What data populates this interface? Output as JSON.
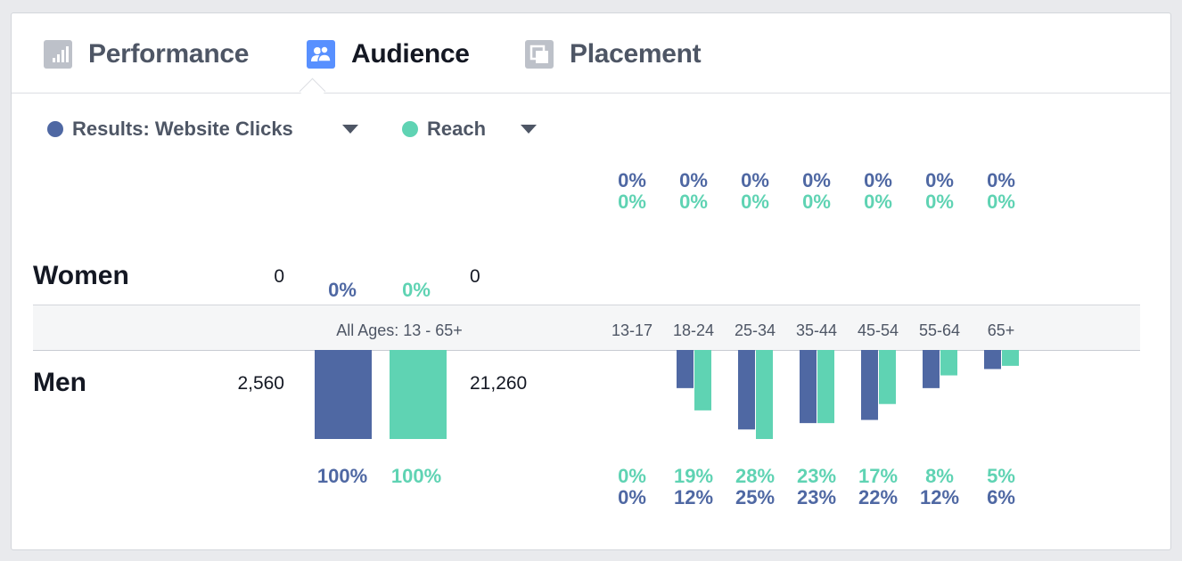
{
  "tabs": [
    {
      "label": "Performance",
      "icon": "bar-chart-icon",
      "active": false
    },
    {
      "label": "Audience",
      "icon": "people-icon",
      "active": true
    },
    {
      "label": "Placement",
      "icon": "placement-icon",
      "active": false
    }
  ],
  "metrics": {
    "primary": {
      "label": "Results: Website Clicks",
      "color": "#4f68a3"
    },
    "secondary": {
      "label": "Reach",
      "color": "#5fd3b3"
    }
  },
  "women": {
    "label": "Women",
    "results_count": "0",
    "reach_count": "0",
    "all_ages_results_pct": "0%",
    "all_ages_reach_pct": "0%",
    "age_results_pct": [
      "0%",
      "0%",
      "0%",
      "0%",
      "0%",
      "0%",
      "0%"
    ],
    "age_reach_pct": [
      "0%",
      "0%",
      "0%",
      "0%",
      "0%",
      "0%",
      "0%"
    ]
  },
  "men": {
    "label": "Men",
    "results_count": "2,560",
    "reach_count": "21,260",
    "all_ages_results_pct": "100%",
    "all_ages_reach_pct": "100%",
    "age_reach_pct": [
      "0%",
      "19%",
      "28%",
      "23%",
      "17%",
      "8%",
      "5%"
    ],
    "age_results_pct": [
      "0%",
      "12%",
      "25%",
      "23%",
      "22%",
      "12%",
      "6%"
    ]
  },
  "axis": {
    "all_ages_label": "All Ages: 13 - 65+",
    "age_groups": [
      "13-17",
      "18-24",
      "25-34",
      "35-44",
      "45-54",
      "55-64",
      "65+"
    ]
  },
  "chart_data": {
    "type": "bar",
    "categories": [
      "13-17",
      "18-24",
      "25-34",
      "35-44",
      "45-54",
      "55-64",
      "65+"
    ],
    "series": [
      {
        "name": "Results: Website Clicks",
        "values": [
          0,
          12,
          25,
          23,
          22,
          12,
          6
        ]
      },
      {
        "name": "Reach",
        "values": [
          0,
          19,
          28,
          23,
          17,
          8,
          5
        ]
      }
    ],
    "all_ages": {
      "Results: Website Clicks": 100,
      "Reach": 100
    },
    "ylim": [
      0,
      28
    ]
  }
}
